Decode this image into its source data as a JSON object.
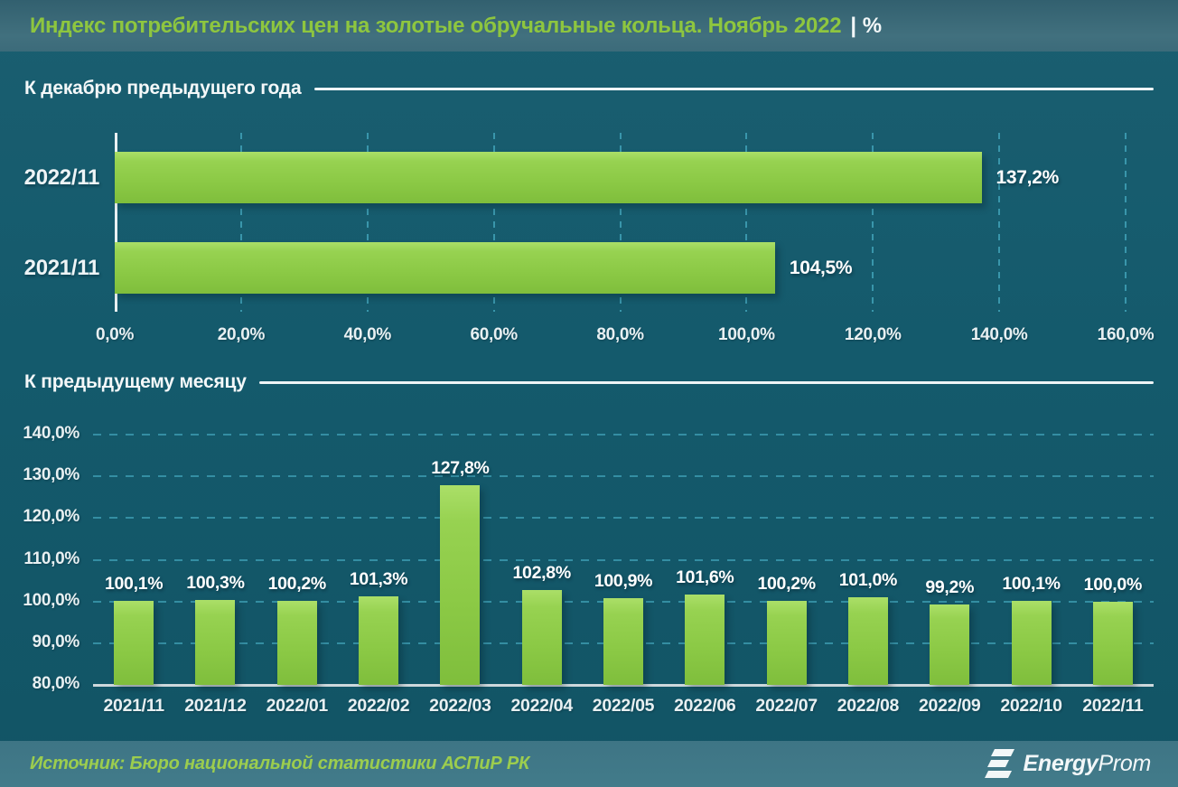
{
  "header": {
    "title": "Индекс потребительских цен на золотые обручальные кольца. Ноябрь 2022",
    "suffix": "| %"
  },
  "chart_data": [
    {
      "type": "bar",
      "orientation": "horizontal",
      "title": "К декабрю предыдущего года",
      "categories": [
        "2022/11",
        "2021/11"
      ],
      "values": [
        137.2,
        104.5
      ],
      "value_labels": [
        "137,2%",
        "104,5%"
      ],
      "xlim": [
        0,
        160
      ],
      "x_tick_step": 20,
      "x_tick_labels": [
        "0,0%",
        "20,0%",
        "40,0%",
        "60,0%",
        "80,0%",
        "100,0%",
        "120,0%",
        "140,0%",
        "160,0%"
      ],
      "grid": "vertical-dashed",
      "ylabel": "",
      "xlabel": ""
    },
    {
      "type": "bar",
      "orientation": "vertical",
      "title": "К предыдущему месяцу",
      "categories": [
        "2021/11",
        "2021/12",
        "2022/01",
        "2022/02",
        "2022/03",
        "2022/04",
        "2022/05",
        "2022/06",
        "2022/07",
        "2022/08",
        "2022/09",
        "2022/10",
        "2022/11"
      ],
      "values": [
        100.1,
        100.3,
        100.2,
        101.3,
        127.8,
        102.8,
        100.9,
        101.6,
        100.2,
        101.0,
        99.2,
        100.1,
        100.0
      ],
      "value_labels": [
        "100,1%",
        "100,3%",
        "100,2%",
        "101,3%",
        "127,8%",
        "102,8%",
        "100,9%",
        "101,6%",
        "100,2%",
        "101,0%",
        "99,2%",
        "100,1%",
        "100,0%"
      ],
      "ylim": [
        80,
        140
      ],
      "y_tick_step": 10,
      "y_tick_labels": [
        "140,0%",
        "130,0%",
        "120,0%",
        "110,0%",
        "100,0%",
        "90,0%",
        "80,0%"
      ],
      "grid": "horizontal-dashed",
      "ylabel": "",
      "xlabel": ""
    }
  ],
  "footer": {
    "source": "Источник: Бюро национальной статистики АСПиР РК",
    "logo_energy": "Energy",
    "logo_prom": "Prom"
  },
  "colors": {
    "background": "#145a6c",
    "header_band": "#3f6e7c",
    "footer_band": "#41798a",
    "title_green": "#8ec63f",
    "bar_green": "#8bc945",
    "grid_teal": "#3fa0b6",
    "text_white": "#f2f7f8",
    "source_green": "#9ccd4e"
  }
}
